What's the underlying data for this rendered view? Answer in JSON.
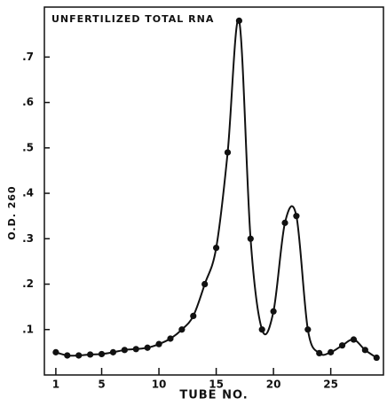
{
  "chart_data": {
    "type": "line",
    "title": "UNFERTILIZED TOTAL RNA",
    "x_label": "TUBE NO.",
    "y_label": "O.D. 260",
    "x": [
      1,
      2,
      3,
      4,
      5,
      6,
      7,
      8,
      9,
      10,
      11,
      12,
      13,
      14,
      15,
      16,
      17,
      18,
      19,
      20,
      21,
      22,
      23,
      24,
      25,
      26,
      27,
      28,
      29
    ],
    "values": [
      0.05,
      0.043,
      0.043,
      0.045,
      0.046,
      0.05,
      0.055,
      0.057,
      0.06,
      0.068,
      0.08,
      0.1,
      0.13,
      0.2,
      0.28,
      0.49,
      0.78,
      0.3,
      0.1,
      0.14,
      0.335,
      0.35,
      0.1,
      0.048,
      0.05,
      0.065,
      0.078,
      0.055,
      0.038
    ],
    "color": "#111111",
    "xlim": [
      0,
      29.6
    ],
    "ylim": [
      0,
      0.81
    ],
    "xticks": [
      1,
      5,
      10,
      15,
      20,
      25
    ],
    "yticks": [
      {
        "value": 0.1,
        "label": ".1"
      },
      {
        "value": 0.2,
        "label": ".2"
      },
      {
        "value": 0.3,
        "label": ".3"
      },
      {
        "value": 0.4,
        "label": ".4"
      },
      {
        "value": 0.5,
        "label": ".5"
      },
      {
        "value": 0.6,
        "label": ".6"
      },
      {
        "value": 0.7,
        "label": ".7"
      }
    ]
  }
}
